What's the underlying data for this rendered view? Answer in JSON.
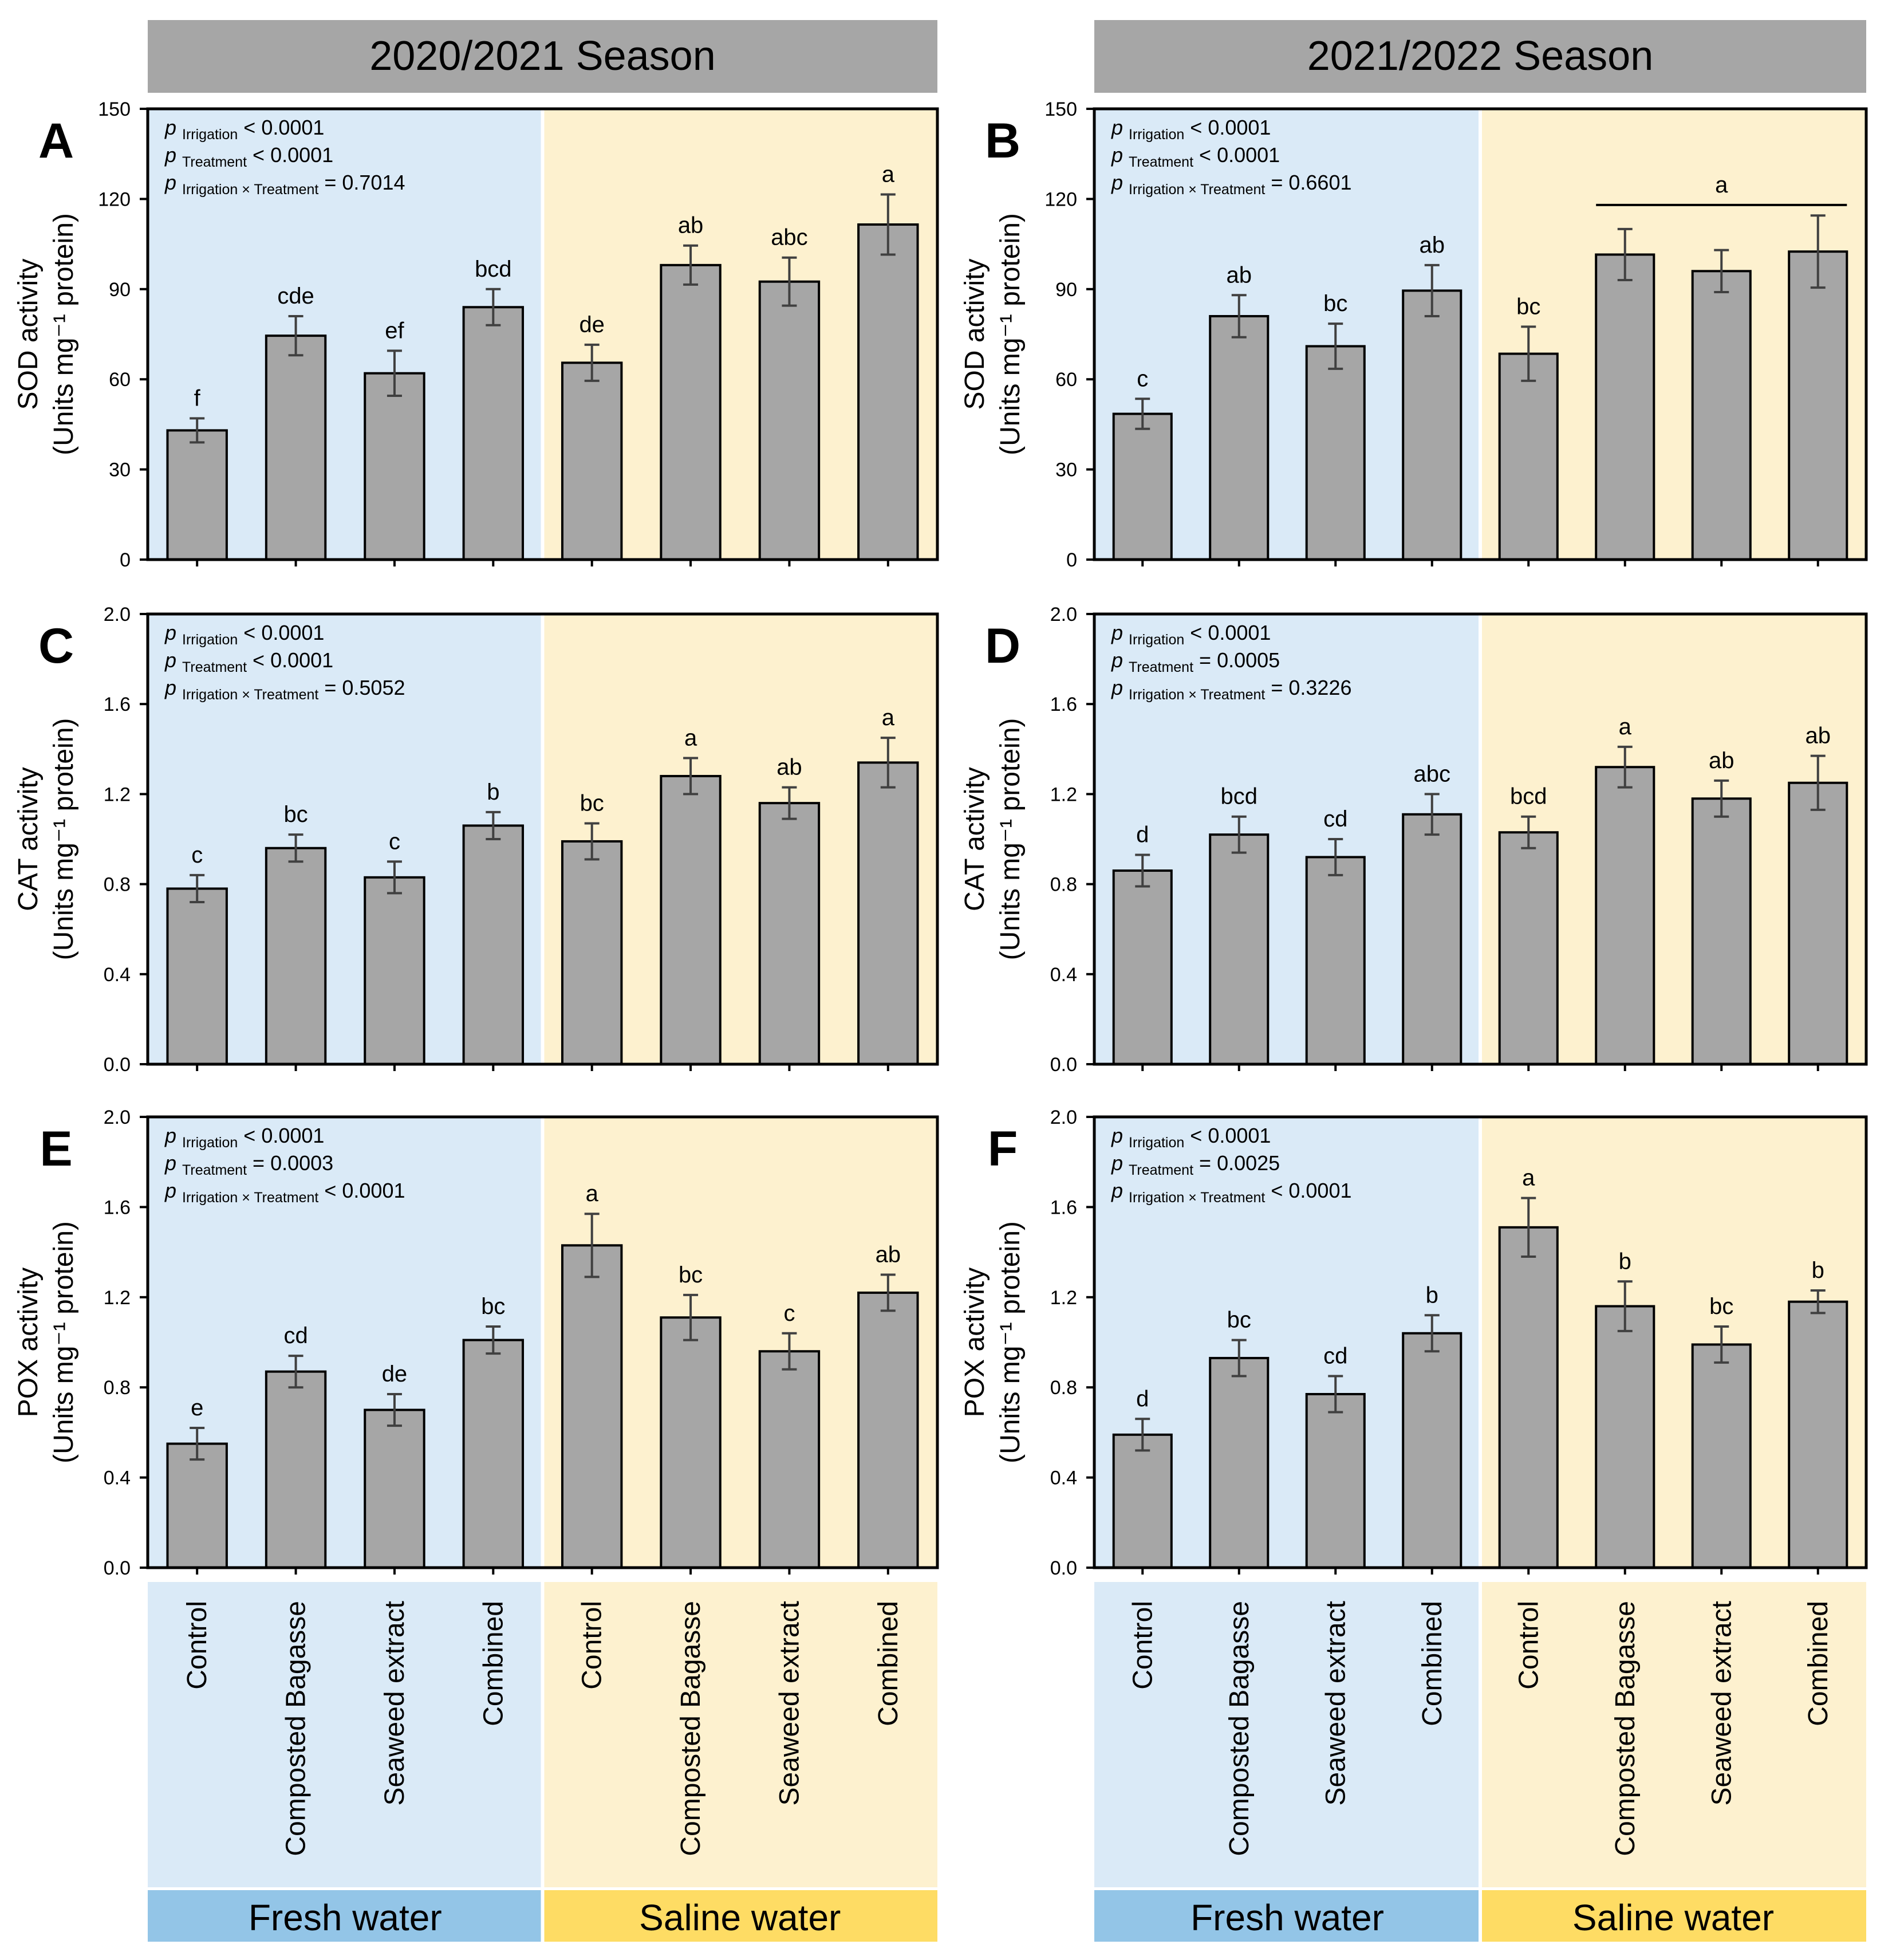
{
  "seasons": [
    "2020/2021 Season",
    "2021/2022 Season"
  ],
  "categories": [
    "Control",
    "Composted Bagasse",
    "Seaweed extract",
    "Combined",
    "Control",
    "Composted Bagasse",
    "Seaweed extract",
    "Combined"
  ],
  "groups": [
    "Fresh water",
    "Saline water"
  ],
  "colors": {
    "fresh_bg": "#daeaf7",
    "saline_bg": "#fdf1cf",
    "fresh_band": "#93c5e7",
    "saline_band": "#fedc64",
    "header": "#a6a6a6",
    "bar": "#a6a6a6"
  },
  "pvalue_prefix": "p",
  "chart_data": [
    {
      "type": "bar",
      "panel": "A",
      "season": "2020/2021 Season",
      "ylabel": "SOD activity",
      "ylabel_units": "(Units mg⁻¹ protein)",
      "ylim": [
        0,
        150
      ],
      "yticks": [
        "0",
        "30",
        "60",
        "90",
        "120",
        "150"
      ],
      "values": [
        43,
        74.5,
        62,
        84,
        65.5,
        98,
        92.5,
        111.5
      ],
      "errors": [
        4,
        6.5,
        7.5,
        6,
        6,
        6.5,
        8,
        10
      ],
      "letters": [
        "f",
        "cde",
        "ef",
        "bcd",
        "de",
        "ab",
        "abc",
        "a"
      ],
      "pvalues": [
        {
          "sub": "Irrigation",
          "text": " < 0.0001"
        },
        {
          "sub": "Treatment",
          "text": " < 0.0001"
        },
        {
          "sub": "Irrigation × Treatment",
          "text": " = 0.7014"
        }
      ]
    },
    {
      "type": "bar",
      "panel": "B",
      "season": "2021/2022 Season",
      "ylabel": "SOD activity",
      "ylabel_units": "(Units mg⁻¹ protein)",
      "ylim": [
        0,
        150
      ],
      "yticks": [
        "0",
        "30",
        "60",
        "90",
        "120",
        "150"
      ],
      "values": [
        48.5,
        81,
        71,
        89.5,
        68.5,
        101.5,
        96,
        102.5
      ],
      "errors": [
        5,
        7,
        7.5,
        8.5,
        9,
        8.5,
        7,
        12
      ],
      "letters": [
        "c",
        "ab",
        "bc",
        "ab",
        "bc",
        "",
        "",
        ""
      ],
      "group_letter": {
        "text": "a",
        "from": 5,
        "to": 7,
        "value": 118
      },
      "pvalues": [
        {
          "sub": "Irrigation",
          "text": " < 0.0001"
        },
        {
          "sub": "Treatment",
          "text": " < 0.0001"
        },
        {
          "sub": "Irrigation × Treatment",
          "text": " = 0.6601"
        }
      ]
    },
    {
      "type": "bar",
      "panel": "C",
      "season": "2020/2021 Season",
      "ylabel": "CAT activity",
      "ylabel_units": "(Units mg⁻¹ protein)",
      "ylim": [
        0,
        2.0
      ],
      "yticks": [
        "0.0",
        "0.4",
        "0.8",
        "1.2",
        "1.6",
        "2.0"
      ],
      "values": [
        0.78,
        0.96,
        0.83,
        1.06,
        0.99,
        1.28,
        1.16,
        1.34
      ],
      "errors": [
        0.06,
        0.06,
        0.07,
        0.06,
        0.08,
        0.08,
        0.07,
        0.11
      ],
      "letters": [
        "c",
        "bc",
        "c",
        "b",
        "bc",
        "a",
        "ab",
        "a"
      ],
      "pvalues": [
        {
          "sub": "Irrigation",
          "text": " < 0.0001"
        },
        {
          "sub": "Treatment",
          "text": " < 0.0001"
        },
        {
          "sub": "Irrigation × Treatment",
          "text": " = 0.5052"
        }
      ]
    },
    {
      "type": "bar",
      "panel": "D",
      "season": "2021/2022 Season",
      "ylabel": "CAT activity",
      "ylabel_units": "(Units mg⁻¹ protein)",
      "ylim": [
        0,
        2.0
      ],
      "yticks": [
        "0.0",
        "0.4",
        "0.8",
        "1.2",
        "1.6",
        "2.0"
      ],
      "values": [
        0.86,
        1.02,
        0.92,
        1.11,
        1.03,
        1.32,
        1.18,
        1.25
      ],
      "errors": [
        0.07,
        0.08,
        0.08,
        0.09,
        0.07,
        0.09,
        0.08,
        0.12
      ],
      "letters": [
        "d",
        "bcd",
        "cd",
        "abc",
        "bcd",
        "a",
        "ab",
        "ab"
      ],
      "pvalues": [
        {
          "sub": "Irrigation",
          "text": " < 0.0001"
        },
        {
          "sub": "Treatment",
          "text": " = 0.0005"
        },
        {
          "sub": "Irrigation × Treatment",
          "text": " = 0.3226"
        }
      ]
    },
    {
      "type": "bar",
      "panel": "E",
      "season": "2020/2021 Season",
      "ylabel": "POX activity",
      "ylabel_units": "(Units mg⁻¹ protein)",
      "ylim": [
        0,
        2.0
      ],
      "yticks": [
        "0.0",
        "0.4",
        "0.8",
        "1.2",
        "1.6",
        "2.0"
      ],
      "values": [
        0.55,
        0.87,
        0.7,
        1.01,
        1.43,
        1.11,
        0.96,
        1.22
      ],
      "errors": [
        0.07,
        0.07,
        0.07,
        0.06,
        0.14,
        0.1,
        0.08,
        0.08
      ],
      "letters": [
        "e",
        "cd",
        "de",
        "bc",
        "a",
        "bc",
        "c",
        "ab"
      ],
      "pvalues": [
        {
          "sub": "Irrigation",
          "text": " < 0.0001"
        },
        {
          "sub": "Treatment",
          "text": " = 0.0003"
        },
        {
          "sub": "Irrigation × Treatment",
          "text": " < 0.0001"
        }
      ]
    },
    {
      "type": "bar",
      "panel": "F",
      "season": "2021/2022 Season",
      "ylabel": "POX activity",
      "ylabel_units": "(Units mg⁻¹ protein)",
      "ylim": [
        0,
        2.0
      ],
      "yticks": [
        "0.0",
        "0.4",
        "0.8",
        "1.2",
        "1.6",
        "2.0"
      ],
      "values": [
        0.59,
        0.93,
        0.77,
        1.04,
        1.51,
        1.16,
        0.99,
        1.18
      ],
      "errors": [
        0.07,
        0.08,
        0.08,
        0.08,
        0.13,
        0.11,
        0.08,
        0.05
      ],
      "letters": [
        "d",
        "bc",
        "cd",
        "b",
        "a",
        "b",
        "bc",
        "b"
      ],
      "pvalues": [
        {
          "sub": "Irrigation",
          "text": " < 0.0001"
        },
        {
          "sub": "Treatment",
          "text": " = 0.0025"
        },
        {
          "sub": "Irrigation × Treatment",
          "text": " < 0.0001"
        }
      ]
    }
  ]
}
